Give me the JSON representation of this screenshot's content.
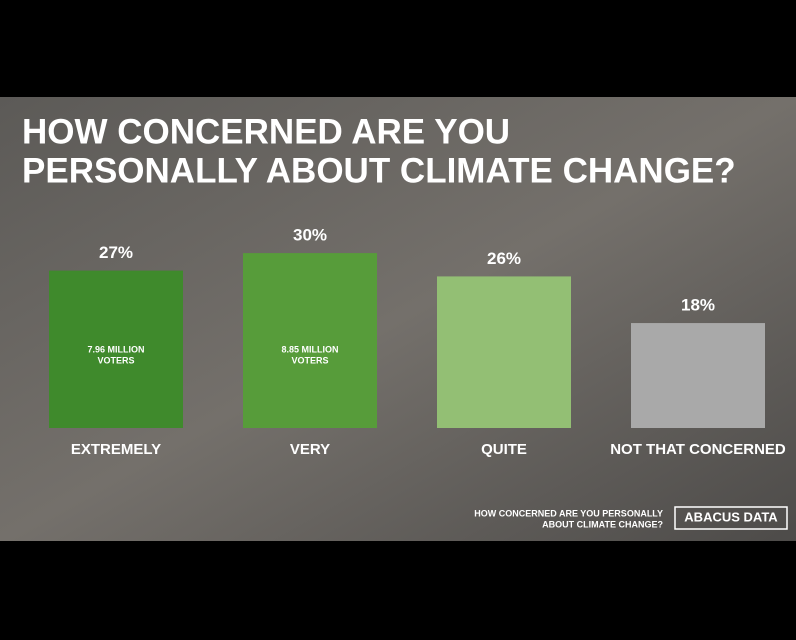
{
  "chart_data": {
    "type": "bar",
    "title": [
      "HOW CONCERNED ARE YOU",
      "PERSONALLY ABOUT CLIMATE CHANGE?"
    ],
    "categories": [
      "EXTREMELY",
      "VERY",
      "QUITE",
      "NOT THAT CONCERNED"
    ],
    "values": [
      27,
      30,
      26,
      18
    ],
    "value_labels": [
      "27%",
      "30%",
      "26%",
      "18%"
    ],
    "colors": [
      "#3f8a2c",
      "#579c3a",
      "#93bf74",
      "#a9a9a9"
    ],
    "bar_annotations": [
      [
        "7.96 MILLION",
        "VOTERS"
      ],
      [
        "8.85 MILLION",
        "VOTERS"
      ],
      null,
      null
    ],
    "footnote": [
      "HOW CONCERNED ARE YOU PERSONALLY",
      "ABOUT CLIMATE CHANGE?"
    ],
    "logo": "ABACUS DATA"
  }
}
